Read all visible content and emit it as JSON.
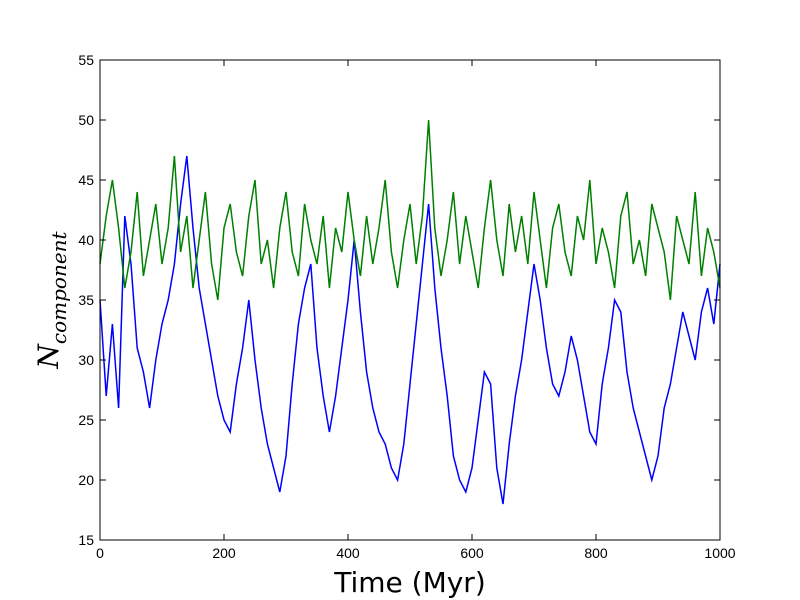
{
  "chart_data": {
    "type": "line",
    "title": "",
    "xlabel": "Time (Myr)",
    "ylabel": {
      "main": "N",
      "subscript": "component"
    },
    "xlim": [
      0,
      1000
    ],
    "ylim": [
      15,
      55
    ],
    "xticks": [
      0,
      200,
      400,
      600,
      800,
      1000
    ],
    "yticks": [
      15,
      20,
      25,
      30,
      35,
      40,
      45,
      50,
      55
    ],
    "grid": false,
    "legend": "none",
    "series": [
      {
        "color": "#0000ff",
        "x": [
          0,
          10,
          20,
          30,
          40,
          50,
          60,
          70,
          80,
          90,
          100,
          110,
          120,
          130,
          140,
          150,
          160,
          170,
          180,
          190,
          200,
          210,
          220,
          230,
          240,
          250,
          260,
          270,
          280,
          290,
          300,
          310,
          320,
          330,
          340,
          350,
          360,
          370,
          380,
          390,
          400,
          410,
          420,
          430,
          440,
          450,
          460,
          470,
          480,
          490,
          500,
          510,
          520,
          530,
          540,
          550,
          560,
          570,
          580,
          590,
          600,
          610,
          620,
          630,
          640,
          650,
          660,
          670,
          680,
          690,
          700,
          710,
          720,
          730,
          740,
          750,
          760,
          770,
          780,
          790,
          800,
          810,
          820,
          830,
          840,
          850,
          860,
          870,
          880,
          890,
          900,
          910,
          920,
          930,
          940,
          950,
          960,
          970,
          980,
          990,
          1000
        ],
        "y": [
          35,
          27,
          33,
          26,
          42,
          38,
          31,
          29,
          26,
          30,
          33,
          35,
          38,
          43,
          47,
          41,
          36,
          33,
          30,
          27,
          25,
          24,
          28,
          31,
          35,
          30,
          26,
          23,
          21,
          19,
          22,
          28,
          33,
          36,
          38,
          31,
          27,
          24,
          27,
          31,
          35,
          40,
          34,
          29,
          26,
          24,
          23,
          21,
          20,
          23,
          28,
          33,
          38,
          43,
          36,
          31,
          27,
          22,
          20,
          19,
          21,
          25,
          29,
          28,
          21,
          18,
          23,
          27,
          30,
          34,
          38,
          35,
          31,
          28,
          27,
          29,
          32,
          30,
          27,
          24,
          23,
          28,
          31,
          35,
          34,
          29,
          26,
          24,
          22,
          20,
          22,
          26,
          28,
          31,
          34,
          32,
          30,
          34,
          36,
          33,
          38
        ]
      },
      {
        "color": "#008000",
        "x": [
          0,
          10,
          20,
          30,
          40,
          50,
          60,
          70,
          80,
          90,
          100,
          110,
          120,
          130,
          140,
          150,
          160,
          170,
          180,
          190,
          200,
          210,
          220,
          230,
          240,
          250,
          260,
          270,
          280,
          290,
          300,
          310,
          320,
          330,
          340,
          350,
          360,
          370,
          380,
          390,
          400,
          410,
          420,
          430,
          440,
          450,
          460,
          470,
          480,
          490,
          500,
          510,
          520,
          530,
          540,
          550,
          560,
          570,
          580,
          590,
          600,
          610,
          620,
          630,
          640,
          650,
          660,
          670,
          680,
          690,
          700,
          710,
          720,
          730,
          740,
          750,
          760,
          770,
          780,
          790,
          800,
          810,
          820,
          830,
          840,
          850,
          860,
          870,
          880,
          890,
          900,
          910,
          920,
          930,
          940,
          950,
          960,
          970,
          980,
          990,
          1000
        ],
        "y": [
          38,
          42,
          45,
          41,
          36,
          39,
          44,
          37,
          40,
          43,
          38,
          41,
          47,
          39,
          42,
          36,
          40,
          44,
          38,
          35,
          41,
          43,
          39,
          37,
          42,
          45,
          38,
          40,
          36,
          41,
          44,
          39,
          37,
          43,
          40,
          38,
          42,
          36,
          41,
          39,
          44,
          40,
          37,
          42,
          38,
          41,
          45,
          39,
          36,
          40,
          43,
          38,
          42,
          50,
          41,
          37,
          40,
          44,
          38,
          42,
          39,
          36,
          41,
          45,
          40,
          37,
          43,
          39,
          42,
          38,
          44,
          40,
          36,
          41,
          43,
          39,
          37,
          42,
          40,
          45,
          38,
          41,
          39,
          36,
          42,
          44,
          38,
          40,
          37,
          43,
          41,
          39,
          35,
          42,
          40,
          38,
          44,
          37,
          41,
          39,
          36
        ]
      }
    ]
  }
}
